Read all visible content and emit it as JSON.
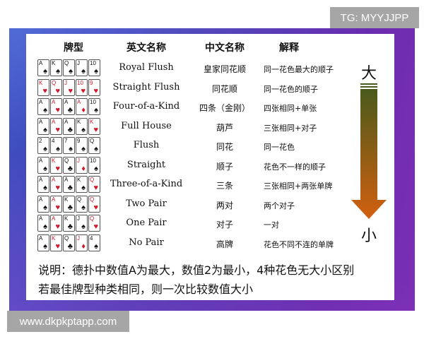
{
  "watermark_top": "TG: MYYJJPP",
  "watermark_bottom": "www.dkpkptapp.com",
  "headers": {
    "hand": "牌型",
    "english": "英文名称",
    "chinese": "中文名称",
    "explain": "解释"
  },
  "scale": {
    "top": "大",
    "bottom": "小",
    "arrow_colors": [
      "#4a5a1c",
      "#d2600f"
    ]
  },
  "rows": [
    {
      "cards": [
        [
          "A",
          "♠"
        ],
        [
          "K",
          "♠"
        ],
        [
          "Q",
          "♠"
        ],
        [
          "J",
          "♠"
        ],
        [
          "10",
          "♠"
        ]
      ],
      "en": "Royal Flush",
      "cn": "皇家同花顺",
      "ex": "同一花色最大的顺子"
    },
    {
      "cards": [
        [
          "K",
          "♥"
        ],
        [
          "Q",
          "♥"
        ],
        [
          "J",
          "♥"
        ],
        [
          "10",
          "♥"
        ],
        [
          "9",
          "♥"
        ]
      ],
      "en": "Straight Flush",
      "cn": "同花顺",
      "ex": "同一花色的顺子"
    },
    {
      "cards": [
        [
          "A",
          "♠"
        ],
        [
          "A",
          "♥"
        ],
        [
          "A",
          "♣"
        ],
        [
          "A",
          "♦"
        ],
        [
          "10",
          "♠"
        ]
      ],
      "en": "Four-of-a-Kind",
      "cn": "四条（金刚）",
      "ex": "四张相同+单张"
    },
    {
      "cards": [
        [
          "A",
          "♠"
        ],
        [
          "A",
          "♥"
        ],
        [
          "A",
          "♣"
        ],
        [
          "K",
          "♠"
        ],
        [
          "K",
          "♥"
        ]
      ],
      "en": "Full House",
      "cn": "葫芦",
      "ex": "三张相同+对子"
    },
    {
      "cards": [
        [
          "2",
          "♠"
        ],
        [
          "4",
          "♠"
        ],
        [
          "7",
          "♠"
        ],
        [
          "9",
          "♠"
        ],
        [
          "Q",
          "♠"
        ]
      ],
      "en": "Flush",
      "cn": "同花",
      "ex": "同一花色"
    },
    {
      "cards": [
        [
          "A",
          "♠"
        ],
        [
          "K",
          "♥"
        ],
        [
          "Q",
          "♣"
        ],
        [
          "J",
          "♦"
        ],
        [
          "10",
          "♠"
        ]
      ],
      "en": "Straight",
      "cn": "顺子",
      "ex": "花色不一样的顺子"
    },
    {
      "cards": [
        [
          "A",
          "♠"
        ],
        [
          "A",
          "♥"
        ],
        [
          "A",
          "♣"
        ],
        [
          "K",
          "♠"
        ],
        [
          "Q",
          "♥"
        ]
      ],
      "en": "Three-of-a-Kind",
      "cn": "三条",
      "ex": "三张相同+两张单牌"
    },
    {
      "cards": [
        [
          "A",
          "♠"
        ],
        [
          "A",
          "♥"
        ],
        [
          "K",
          "♣"
        ],
        [
          "Q",
          "♠"
        ],
        [
          "Q",
          "♥"
        ]
      ],
      "en": "Two Pair",
      "cn": "两对",
      "ex": "两个对子"
    },
    {
      "cards": [
        [
          "A",
          "♠"
        ],
        [
          "A",
          "♥"
        ],
        [
          "K",
          "♣"
        ],
        [
          "J",
          "♠"
        ],
        [
          "Q",
          "♥"
        ]
      ],
      "en": "One Pair",
      "cn": "对子",
      "ex": "一对"
    },
    {
      "cards": [
        [
          "A",
          "♠"
        ],
        [
          "K",
          "♥"
        ],
        [
          "Q",
          "♣"
        ],
        [
          "J",
          "♦"
        ],
        [
          "4",
          "♠"
        ]
      ],
      "en": "No Pair",
      "cn": "高牌",
      "ex": "花色不同不连的单牌"
    }
  ],
  "notes": [
    "说明：德扑中数值A为最大，数值2为最小，4种花色无大小区别",
    "若最佳牌型种类相同，则一次比较数值大小"
  ]
}
